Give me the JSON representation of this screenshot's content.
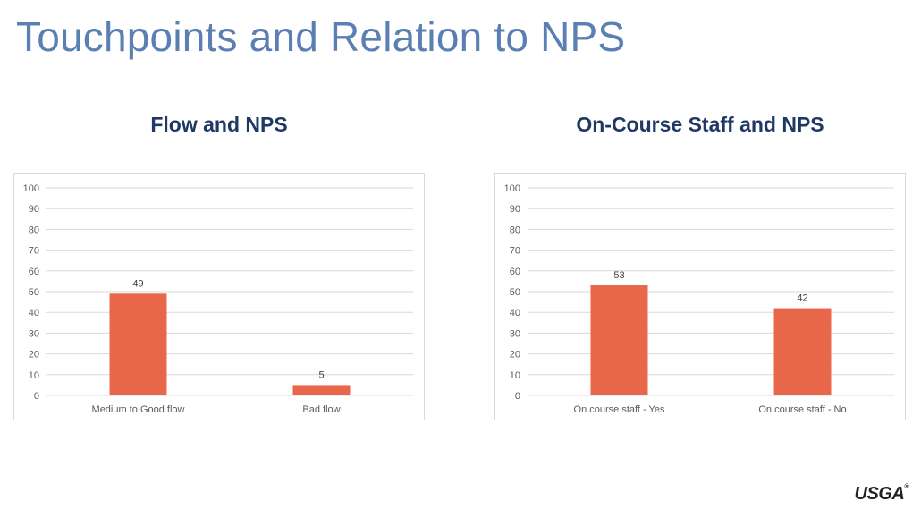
{
  "slide": {
    "title": "Touchpoints and Relation to NPS",
    "logo": "USGA",
    "logo_mark": "®"
  },
  "colors": {
    "bar": "#e8674a",
    "title": "#5b7fb3",
    "heading": "#1f3864"
  },
  "chart_data": [
    {
      "type": "bar",
      "title": "Flow and NPS",
      "categories": [
        "Medium to Good flow",
        "Bad flow"
      ],
      "values": [
        49,
        5
      ],
      "data_labels": [
        "49",
        "5"
      ],
      "ylim": [
        0,
        100
      ],
      "yticks": [
        "0",
        "10",
        "20",
        "30",
        "40",
        "50",
        "60",
        "70",
        "80",
        "90",
        "100"
      ],
      "xlabel": "",
      "ylabel": "",
      "grid": true,
      "legend": "none"
    },
    {
      "type": "bar",
      "title": "On-Course Staff and NPS",
      "categories": [
        "On course staff - Yes",
        "On course staff - No"
      ],
      "values": [
        53,
        42
      ],
      "data_labels": [
        "53",
        "42"
      ],
      "ylim": [
        0,
        100
      ],
      "yticks": [
        "0",
        "10",
        "20",
        "30",
        "40",
        "50",
        "60",
        "70",
        "80",
        "90",
        "100"
      ],
      "xlabel": "",
      "ylabel": "",
      "grid": true,
      "legend": "none"
    }
  ]
}
